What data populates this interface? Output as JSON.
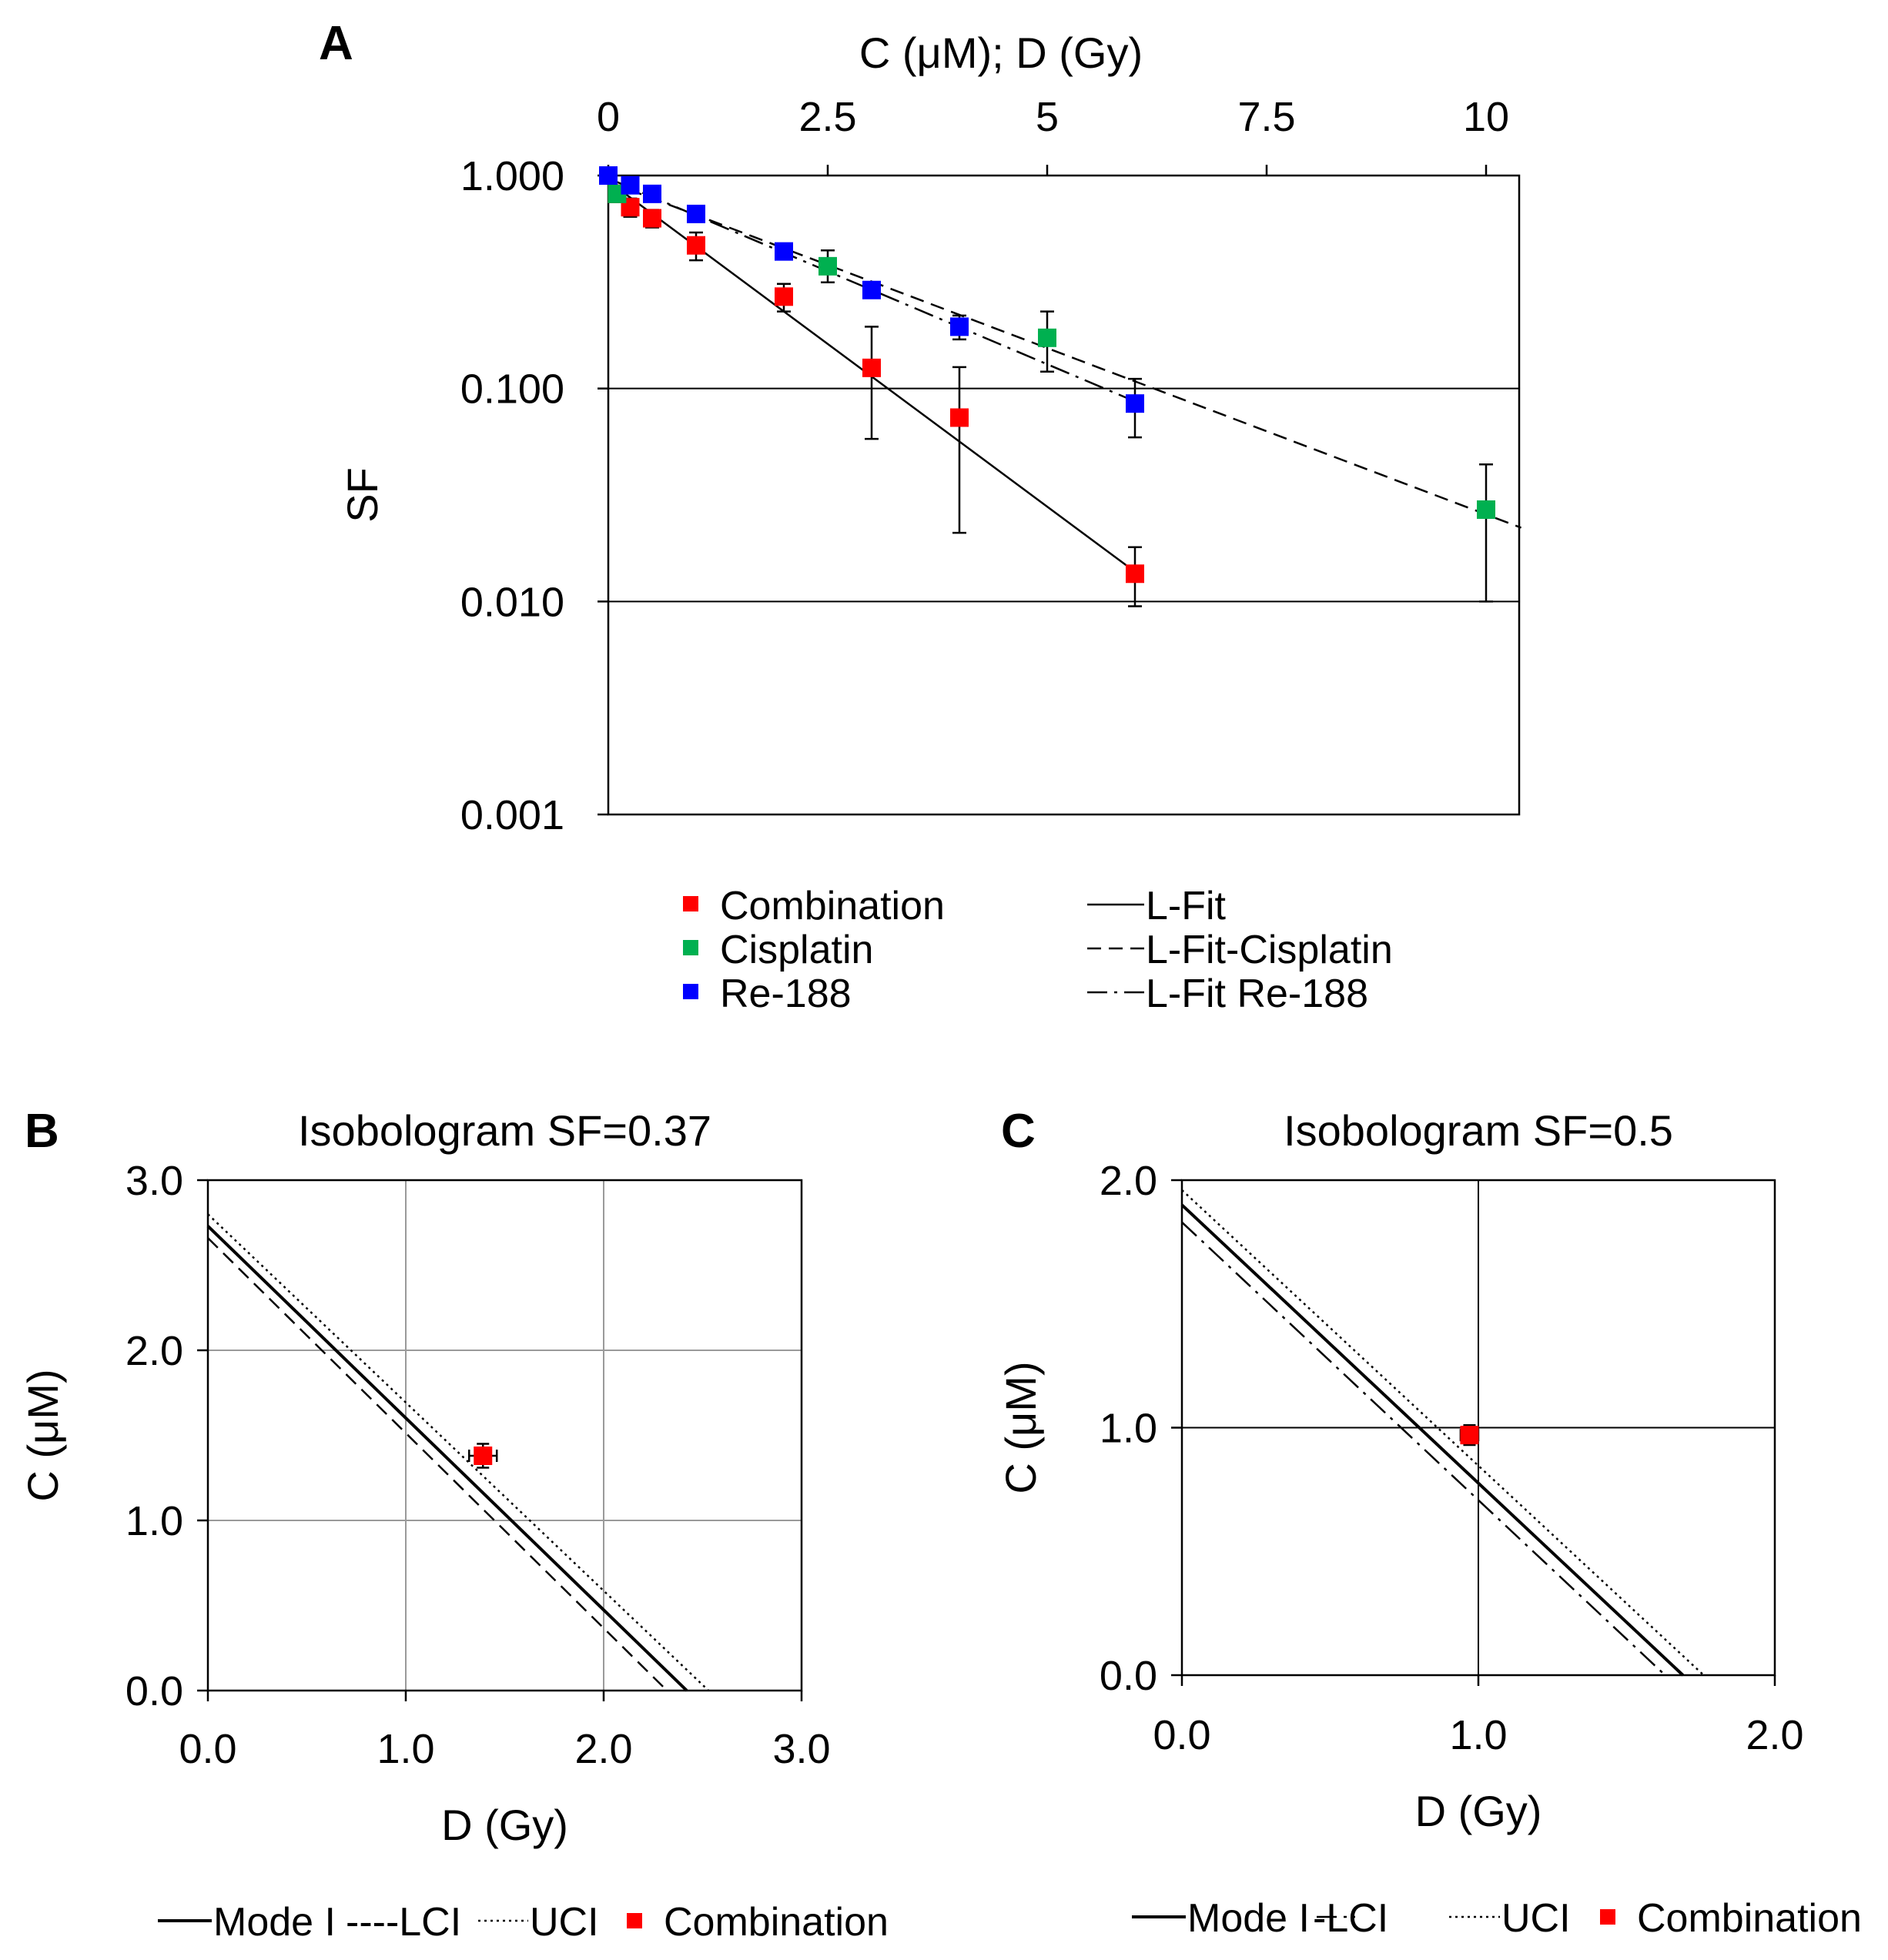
{
  "chart_data": [
    {
      "panel": "A",
      "type": "scatter",
      "xlabel": "C (μM); D (Gy)",
      "ylabel": "SF",
      "xaxis_position": "top",
      "xlim": [
        0,
        10.4
      ],
      "ylim": [
        0.001,
        1
      ],
      "yscale": "log",
      "xticks": [
        0,
        2.5,
        5,
        7.5,
        10
      ],
      "xtick_labels": [
        "0",
        "2.5",
        "5",
        "7.5",
        "10"
      ],
      "yticks": [
        1,
        0.1,
        0.01,
        0.001
      ],
      "ytick_labels": [
        "1.000",
        "0.100",
        "0.010",
        "0.001"
      ],
      "series": [
        {
          "name": "Combination",
          "color": "#ff0000",
          "marker": "square",
          "x": [
            0.1,
            0.25,
            0.5,
            1,
            2,
            3,
            4,
            6
          ],
          "y": [
            0.82,
            0.71,
            0.63,
            0.47,
            0.27,
            0.125,
            0.073,
            0.0135
          ],
          "err_lo": [
            0.04,
            0.07,
            0.06,
            0.07,
            0.04,
            0.067,
            0.052,
            0.004
          ],
          "err_hi": [
            0.04,
            0.07,
            0.06,
            0.07,
            0.04,
            0.07,
            0.053,
            0.0045
          ]
        },
        {
          "name": "Cisplatin",
          "color": "#00b050",
          "marker": "square",
          "x": [
            0.1,
            2.5,
            5,
            10
          ],
          "y": [
            0.82,
            0.375,
            0.173,
            0.027
          ],
          "err_lo": [
            0.04,
            0.06,
            0.053,
            0.017
          ],
          "err_hi": [
            0.04,
            0.07,
            0.057,
            0.017
          ]
        },
        {
          "name": "Re-188",
          "color": "#0000ff",
          "marker": "square",
          "x": [
            0,
            0.25,
            0.5,
            1,
            2,
            3,
            4,
            6
          ],
          "y": [
            1.0,
            0.9,
            0.82,
            0.66,
            0.44,
            0.29,
            0.195,
            0.085
          ],
          "err_lo": [
            0.03,
            0.04,
            0.04,
            0.04,
            0.03,
            0.02,
            0.025,
            0.026
          ],
          "err_hi": [
            0.03,
            0.04,
            0.04,
            0.04,
            0.03,
            0.02,
            0.025,
            0.026
          ]
        }
      ],
      "fits": [
        {
          "name": "L-Fit",
          "style": "solid",
          "x": [
            0,
            6
          ],
          "y": [
            0.94,
            0.0138
          ]
        },
        {
          "name": "L-Fit-Cisplatin",
          "style": "dashed",
          "x": [
            0,
            10.4
          ],
          "y": [
            0.935,
            0.0222
          ]
        },
        {
          "name": "L-Fit Re-188",
          "style": "dashdot",
          "x": [
            0,
            6
          ],
          "y": [
            0.97,
            0.087
          ]
        }
      ],
      "legend": {
        "position": "bottom",
        "markers": [
          "Combination",
          "Cisplatin",
          "Re-188"
        ],
        "lines": [
          "L-Fit",
          "L-Fit-Cisplatin",
          "L-Fit Re-188"
        ]
      }
    },
    {
      "panel": "B",
      "type": "line",
      "title": "Isobologram SF=0.37",
      "xlabel": "D (Gy)",
      "ylabel": "C (μM)",
      "xlim": [
        0,
        3
      ],
      "ylim": [
        0,
        3
      ],
      "xticks": [
        0,
        1,
        2,
        3
      ],
      "yticks": [
        0,
        1,
        2,
        3
      ],
      "xtick_labels": [
        "0.0",
        "1.0",
        "2.0",
        "3.0"
      ],
      "ytick_labels": [
        "0.0",
        "1.0",
        "2.0",
        "3.0"
      ],
      "series": [
        {
          "name": "Mode I",
          "style": "solid",
          "x": [
            0,
            2.42
          ],
          "y": [
            2.73,
            0
          ]
        },
        {
          "name": "LCI",
          "style": "dashed",
          "x": [
            0,
            2.32
          ],
          "y": [
            2.66,
            0
          ]
        },
        {
          "name": "UCI",
          "style": "dotted",
          "x": [
            0,
            2.53
          ],
          "y": [
            2.8,
            0
          ]
        }
      ],
      "points": [
        {
          "name": "Combination",
          "x": 1.39,
          "y": 1.38,
          "xerr": 0.07,
          "yerr": 0.07,
          "color": "#ff0000"
        }
      ],
      "legend": {
        "position": "bottom",
        "entries": [
          "Mode I",
          "LCI",
          "UCI",
          "Combination"
        ],
        "label_texts": [
          "Mode I",
          "----LCI",
          "UCI",
          "Combination"
        ]
      }
    },
    {
      "panel": "C",
      "type": "line",
      "title": "Isobologram SF=0.5",
      "xlabel": "D (Gy)",
      "ylabel": "C (μM)",
      "xlim": [
        0,
        2
      ],
      "ylim": [
        0,
        2
      ],
      "xticks": [
        0,
        1,
        2
      ],
      "yticks": [
        0,
        1,
        2
      ],
      "xtick_labels": [
        "0.0",
        "1.0",
        "2.0"
      ],
      "ytick_labels": [
        "0.0",
        "1.0",
        "2.0"
      ],
      "series": [
        {
          "name": "Mode I",
          "style": "solid",
          "x": [
            0,
            1.69
          ],
          "y": [
            1.9,
            0
          ]
        },
        {
          "name": "LCI",
          "style": "dashdot",
          "x": [
            0,
            1.63
          ],
          "y": [
            1.83,
            0
          ]
        },
        {
          "name": "UCI",
          "style": "dotted",
          "x": [
            0,
            1.76
          ],
          "y": [
            1.96,
            0
          ]
        }
      ],
      "points": [
        {
          "name": "Combination",
          "x": 0.97,
          "y": 0.97,
          "xerr": 0.03,
          "yerr": 0.04,
          "color": "#ff0000"
        }
      ],
      "legend": {
        "position": "bottom",
        "entries": [
          "Mode I",
          "LCI",
          "UCI",
          "Combination"
        ],
        "label_texts": [
          "Mode I",
          "-LCI",
          "UCI",
          "Combination"
        ]
      }
    }
  ],
  "panel_labels": [
    "A",
    "B",
    "C"
  ]
}
